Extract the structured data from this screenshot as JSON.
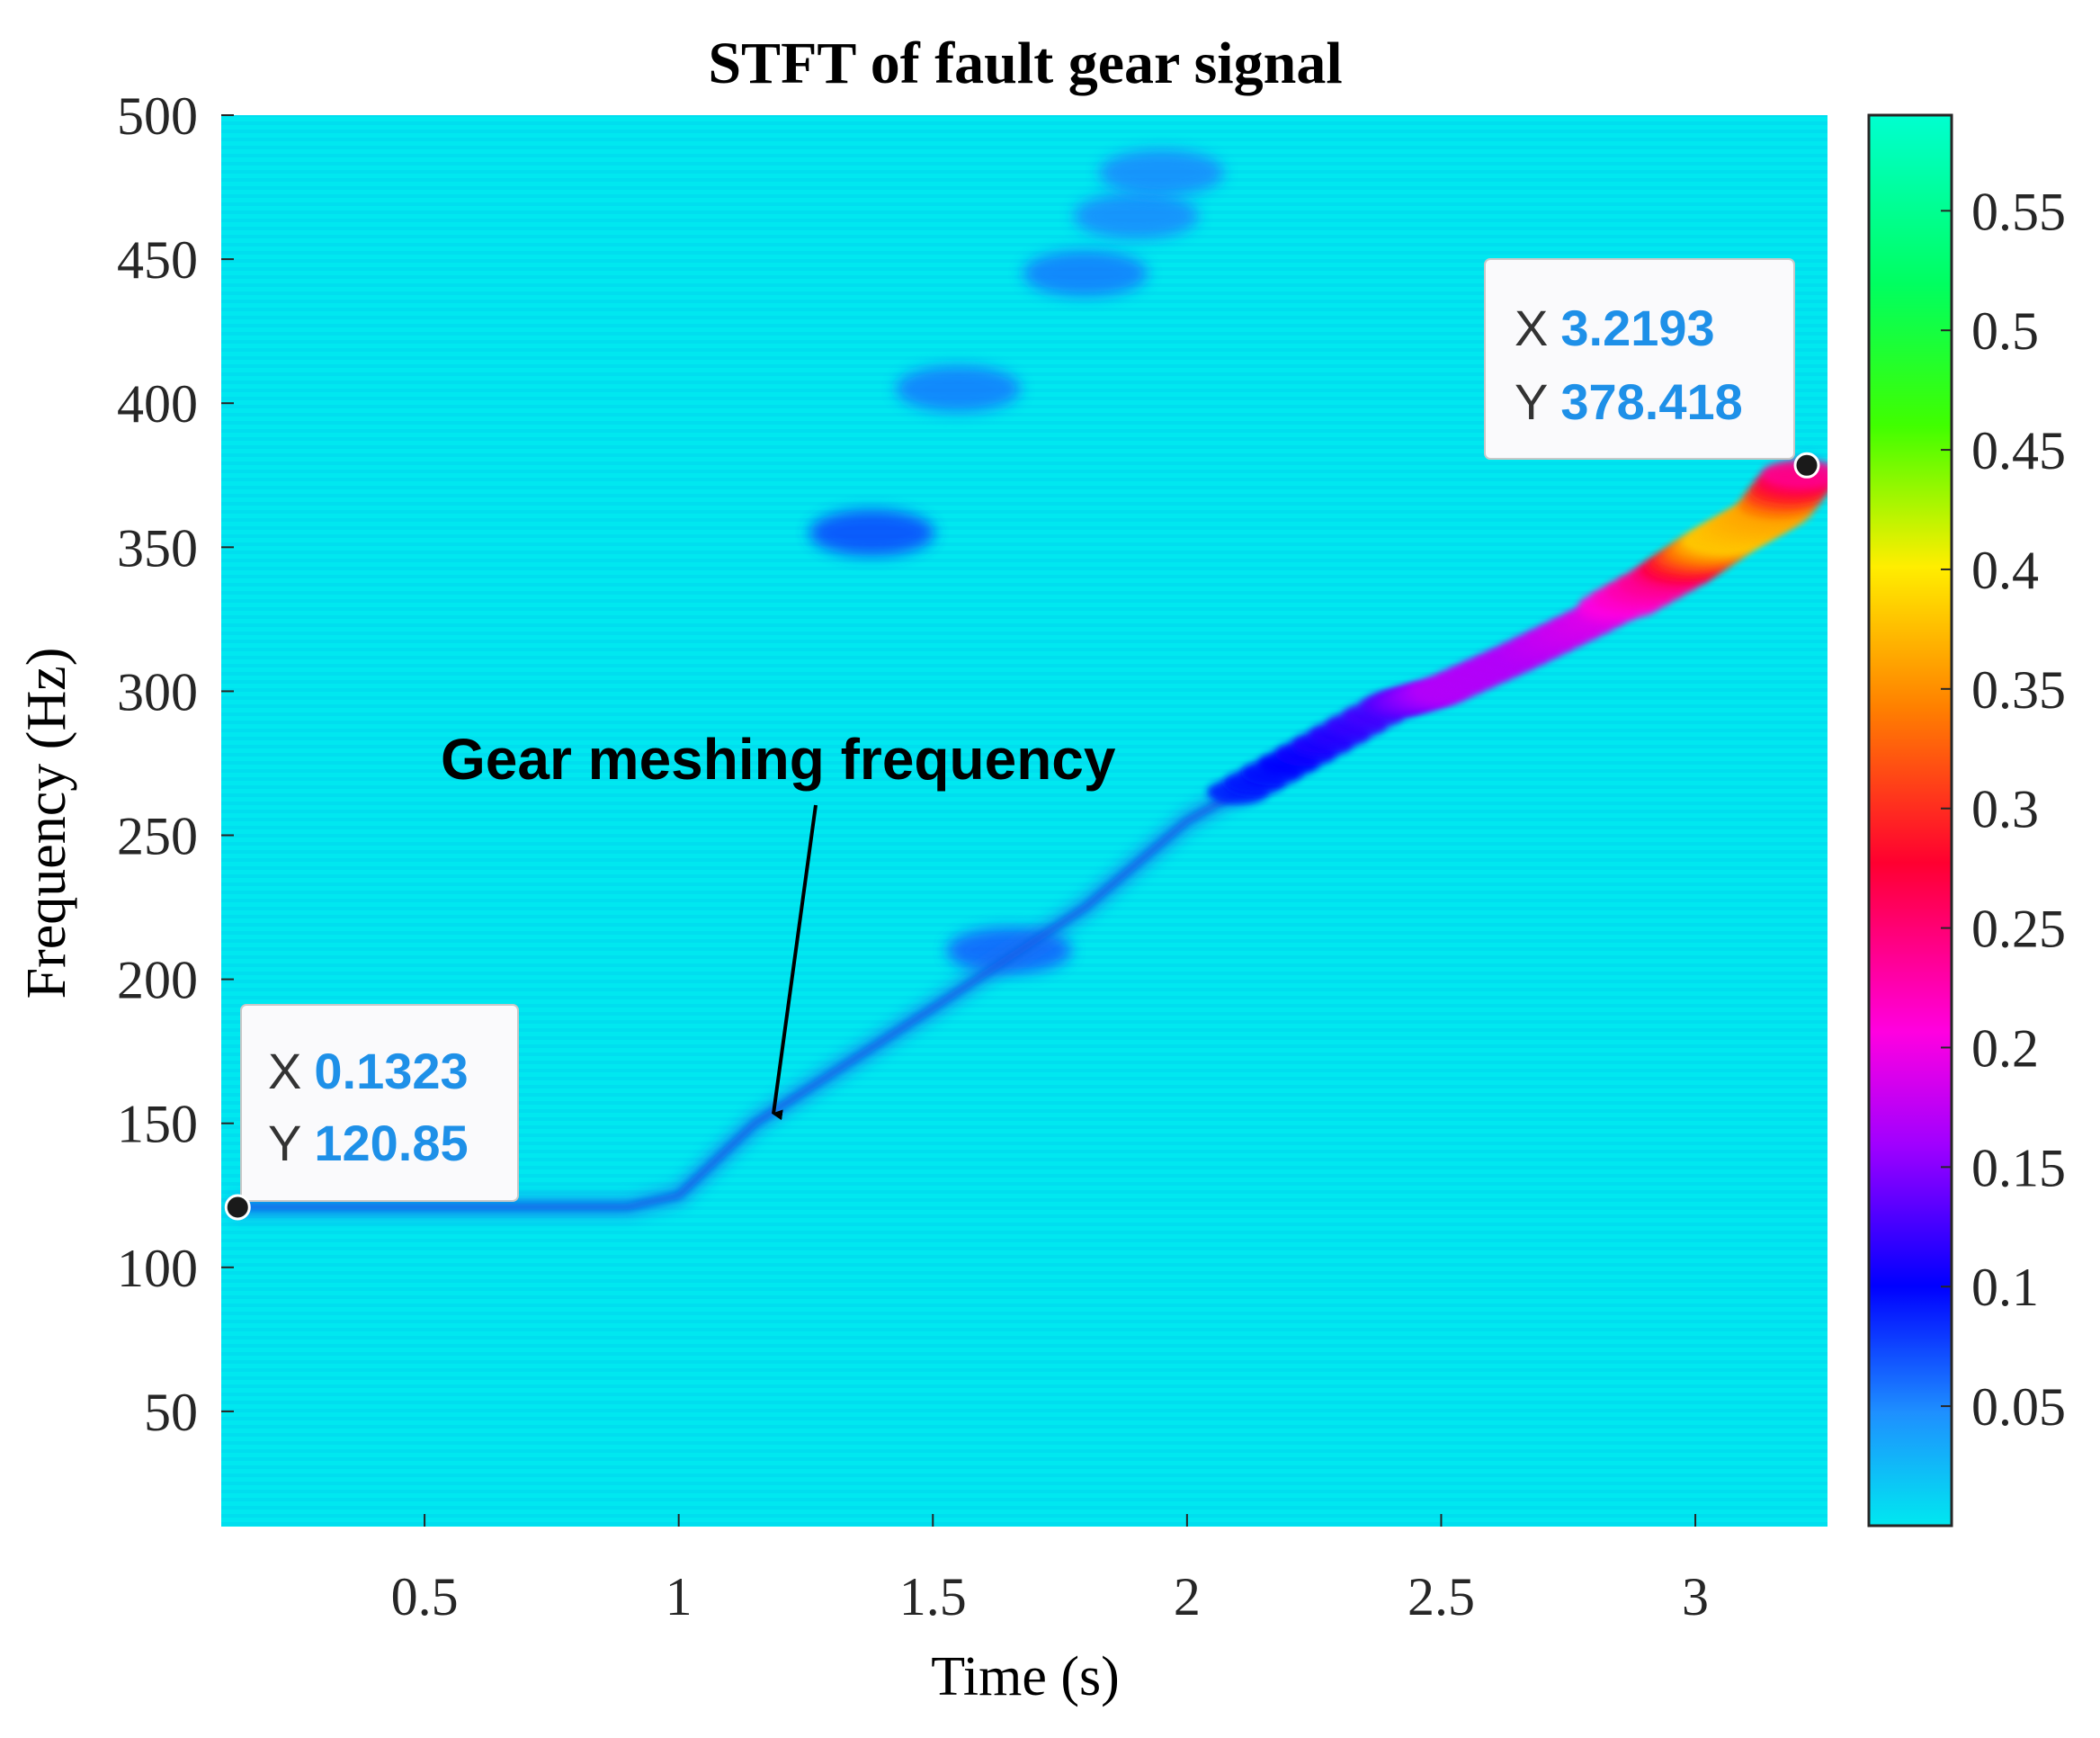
{
  "chart_data": {
    "type": "heatmap",
    "title": "STFT of fault gear signal",
    "xlabel": "Time (s)",
    "ylabel": "Frequency (Hz)",
    "xlim": [
      0.1,
      3.26
    ],
    "ylim": [
      10,
      500
    ],
    "x_ticks": [
      0.5,
      1,
      1.5,
      2,
      2.5,
      3
    ],
    "x_tick_labels": [
      "0.5",
      "1",
      "1.5",
      "2",
      "2.5",
      "3"
    ],
    "y_ticks": [
      50,
      100,
      150,
      200,
      250,
      300,
      350,
      400,
      450,
      500
    ],
    "y_tick_labels": [
      "50",
      "100",
      "150",
      "200",
      "250",
      "300",
      "350",
      "400",
      "450",
      "500"
    ],
    "colorbar": {
      "clim": [
        0,
        0.59
      ],
      "ticks": [
        0.05,
        0.1,
        0.15,
        0.2,
        0.25,
        0.3,
        0.35,
        0.4,
        0.45,
        0.5,
        0.55
      ],
      "tick_labels": [
        "0.05",
        "0.1",
        "0.15",
        "0.2",
        "0.25",
        "0.3",
        "0.35",
        "0.4",
        "0.45",
        "0.5",
        "0.55"
      ]
    },
    "background_level": 0.02,
    "meshing_ridge": {
      "name": "Gear meshing frequency",
      "points": [
        {
          "t": 0.13,
          "f": 121,
          "v": 0.07
        },
        {
          "t": 0.9,
          "f": 121,
          "v": 0.07
        },
        {
          "t": 1.0,
          "f": 125,
          "v": 0.07
        },
        {
          "t": 1.15,
          "f": 150,
          "v": 0.07
        },
        {
          "t": 1.5,
          "f": 190,
          "v": 0.06
        },
        {
          "t": 1.8,
          "f": 225,
          "v": 0.07
        },
        {
          "t": 2.0,
          "f": 255,
          "v": 0.08
        },
        {
          "t": 2.2,
          "f": 275,
          "v": 0.1
        },
        {
          "t": 2.4,
          "f": 295,
          "v": 0.13
        },
        {
          "t": 2.5,
          "f": 300,
          "v": 0.17
        },
        {
          "t": 2.65,
          "f": 312,
          "v": 0.17
        },
        {
          "t": 2.8,
          "f": 325,
          "v": 0.19
        },
        {
          "t": 2.95,
          "f": 340,
          "v": 0.25
        },
        {
          "t": 3.05,
          "f": 352,
          "v": 0.38
        },
        {
          "t": 3.15,
          "f": 362,
          "v": 0.36
        },
        {
          "t": 3.22,
          "f": 378,
          "v": 0.22
        }
      ]
    },
    "dark_blobs": [
      {
        "t": 1.38,
        "f": 355,
        "v": 0.08
      },
      {
        "t": 1.65,
        "f": 210,
        "v": 0.07
      },
      {
        "t": 1.55,
        "f": 405,
        "v": 0.06
      },
      {
        "t": 1.8,
        "f": 445,
        "v": 0.06
      },
      {
        "t": 1.9,
        "f": 465,
        "v": 0.055
      },
      {
        "t": 1.95,
        "f": 480,
        "v": 0.055
      }
    ],
    "datatips": [
      {
        "x_label": "X",
        "x_value": "0.1323",
        "y_label": "Y",
        "y_value": "120.85",
        "t": 0.1323,
        "f": 120.85
      },
      {
        "x_label": "X",
        "x_value": "3.2193",
        "y_label": "Y",
        "y_value": "378.418",
        "t": 3.2193,
        "f": 378.418
      }
    ],
    "annotation": {
      "text": "Gear meshing frequency",
      "t": 1.2,
      "f": 150
    }
  },
  "colors": {
    "accent": "#1E90E8",
    "background": "#00E8F0"
  }
}
